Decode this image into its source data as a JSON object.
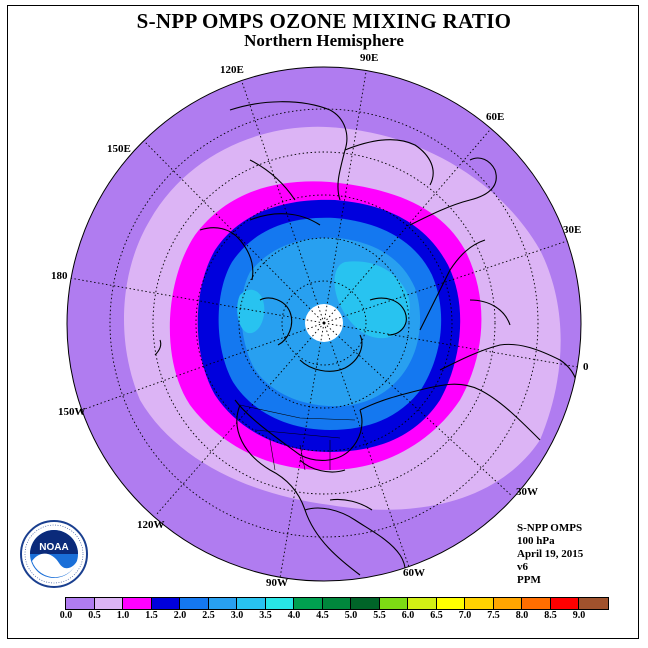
{
  "title": "S-NPP OMPS OZONE MIXING RATIO",
  "subtitle": "Northern Hemisphere",
  "longitude_labels": {
    "e90": "90E",
    "e120": "120E",
    "e60": "60E",
    "e150": "150E",
    "e30": "30E",
    "d180": "180",
    "d0": "0",
    "w150": "150W",
    "w30": "30W",
    "w120": "120W",
    "w60": "60W",
    "w90": "90W"
  },
  "info": {
    "instrument": "S-NPP OMPS",
    "level": "100 hPa",
    "date": "April 19, 2015",
    "version": "v6",
    "units": "PPM"
  },
  "logo": {
    "name": "noaa-logo",
    "inner_text": "NOAA"
  },
  "colorbar": {
    "colors": [
      "#b07cf0",
      "#dcb4f5",
      "#ff00ff",
      "#0000dd",
      "#1478f0",
      "#28a0f0",
      "#28c3f0",
      "#28e6e6",
      "#00a050",
      "#00873c",
      "#006428",
      "#7ddc14",
      "#d2f014",
      "#ffff00",
      "#ffd200",
      "#ffa500",
      "#ff6e00",
      "#ff0000",
      "#a0522d"
    ],
    "ticks": [
      "0.0",
      "0.5",
      "1.0",
      "1.5",
      "2.0",
      "2.5",
      "3.0",
      "3.5",
      "4.0",
      "4.5",
      "5.0",
      "5.5",
      "6.0",
      "6.5",
      "7.0",
      "7.5",
      "8.0",
      "8.5",
      "9.0"
    ]
  },
  "map_colors": {
    "outer": "#b07cf0",
    "band_lilac": "#dcb4f5",
    "band_magenta": "#ff00ff",
    "band_blue": "#0000dd",
    "band_mid": "#1478f0",
    "band_light": "#28a0f0",
    "band_cyan": "#28c3f0",
    "pole": "#ffffff"
  }
}
